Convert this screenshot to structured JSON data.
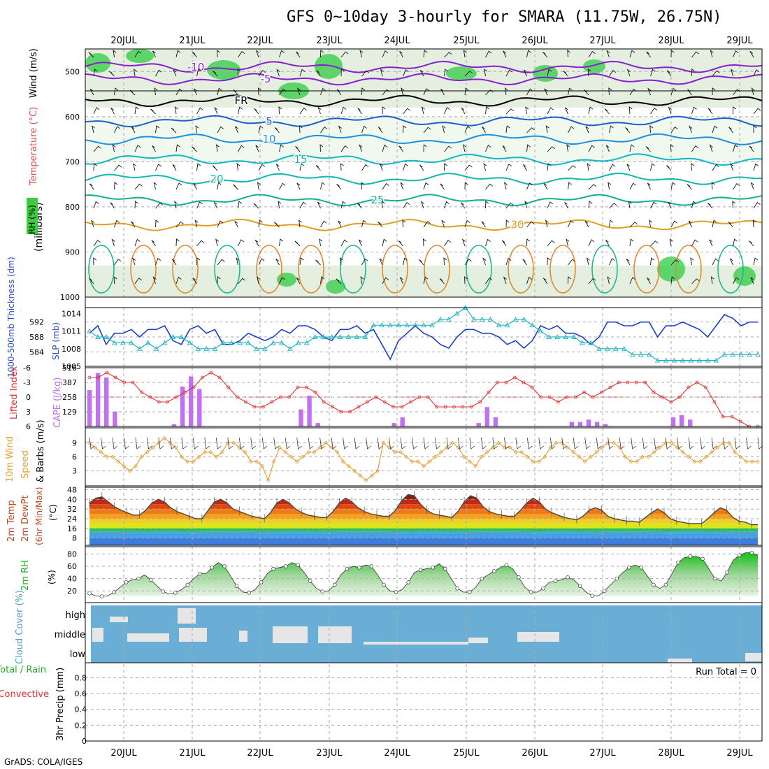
{
  "header": {
    "title": "GFS 0~10day 3-hourly for SMARA (11.75W, 26.75N)",
    "credit": "GrADS: COLA/IGES"
  },
  "dates": [
    "20JUL",
    "21JUL",
    "22JUL",
    "23JUL",
    "24JUL",
    "25JUL",
    "26JUL",
    "27JUL",
    "28JUL",
    "29JUL"
  ],
  "colors": {
    "rh_green": "#2ecc40",
    "temp_purple": "#8a1fd0",
    "temp_blue": "#1e5fd0",
    "temp_cyan": "#10b8c8",
    "temp_orange": "#e0a020",
    "thickness": "#1c3fc8",
    "slp": "#20b4c0",
    "lifted": "#e03030",
    "cape": "#c070f0",
    "wind10": "#e89a30",
    "rh2m": "#22bb22",
    "cloud": "#6aaed6",
    "cloud_bar": "#e6e6e6"
  },
  "chart_data": [
    {
      "type": "heatmap",
      "panel": "upper-air",
      "y_axis_title": "(millibars)",
      "legend_labels": [
        "RH (%)",
        "Temperature (°C)",
        "Wind (m/s)"
      ],
      "yticks": [
        500,
        600,
        700,
        800,
        900,
        1000
      ],
      "ylim": [
        450,
        1000
      ],
      "isotherms": [
        {
          "label": "-10",
          "pressure": 490,
          "color": "#8a1fd0"
        },
        {
          "label": "-5",
          "pressure": 517,
          "color": "#8a1fd0"
        },
        {
          "label": "FR",
          "pressure": 565,
          "color": "#000000"
        },
        {
          "label": "5",
          "pressure": 610,
          "color": "#1e5fd0"
        },
        {
          "label": "10",
          "pressure": 650,
          "color": "#1e8fe0"
        },
        {
          "label": "15",
          "pressure": 695,
          "color": "#10b8c8"
        },
        {
          "label": "20",
          "pressure": 738,
          "color": "#10b8b0"
        },
        {
          "label": "25",
          "pressure": 785,
          "color": "#10b090"
        },
        {
          "label": "30",
          "pressure": 840,
          "color": "#e0a020"
        }
      ]
    },
    {
      "type": "line",
      "panel": "thickness-slp",
      "label_left": "1000-500mb Thickness (dm)",
      "label_right": "SLP (mb)",
      "left_ticks": [
        584,
        588,
        592
      ],
      "right_ticks": [
        1005,
        1008,
        1011,
        1014
      ],
      "series": [
        {
          "values": [
            589,
            591,
            586,
            589,
            589,
            590,
            588,
            590,
            590,
            591,
            587,
            586,
            590,
            591,
            589,
            590,
            586,
            586,
            587,
            589,
            588,
            587,
            588,
            590,
            589,
            591,
            591,
            590,
            588,
            587,
            590,
            590,
            591,
            589,
            590,
            586,
            582,
            587,
            589,
            591,
            589,
            588,
            586,
            585,
            588,
            590,
            590,
            589,
            589,
            588,
            586,
            587,
            585,
            587,
            591,
            590,
            591,
            589,
            589,
            588,
            586,
            588,
            592,
            592,
            591,
            591,
            592,
            592,
            588,
            591,
            591,
            592,
            591,
            590,
            588,
            591,
            594,
            593,
            591,
            592,
            592
          ]
        },
        {
          "values": [
            1011,
            1010,
            1010,
            1009,
            1009,
            1009,
            1008,
            1009,
            1008,
            1009,
            1010,
            1010,
            1009,
            1008,
            1008,
            1008,
            1009,
            1009,
            1009,
            1009,
            1008,
            1008,
            1009,
            1009,
            1008,
            1009,
            1009,
            1010,
            1010,
            1010,
            1010,
            1010,
            1010,
            1010,
            1012,
            1012,
            1012,
            1012,
            1012,
            1012,
            1012,
            1012,
            1013,
            1013,
            1014,
            1015,
            1013,
            1013,
            1013,
            1012,
            1012,
            1013,
            1013,
            1012,
            1011,
            1010,
            1010,
            1010,
            1010,
            1009,
            1009,
            1008,
            1008,
            1008,
            1008,
            1007,
            1007,
            1007,
            1006,
            1006,
            1006,
            1006,
            1006,
            1006,
            1006,
            1006,
            1007,
            1007,
            1007,
            1007,
            1007
          ]
        }
      ]
    },
    {
      "type": "bar",
      "panel": "lifted-cape",
      "label_left": "Lifted Index",
      "label_right": "CAPE (J/kg)",
      "li_ticks": [
        "-6",
        "-3",
        "0",
        "3",
        "6"
      ],
      "cape_ticks": [
        129,
        258,
        387,
        516
      ],
      "series": [
        {
          "name": "Lifted Index",
          "values": [
            -4,
            -4,
            -5,
            -4,
            -3,
            -3,
            -1,
            0,
            1,
            1,
            0,
            -1,
            -2,
            -4,
            -5,
            -4,
            -2,
            0,
            1,
            2,
            2,
            1,
            0,
            0,
            -2,
            -2,
            -1,
            1,
            2,
            3,
            3,
            2,
            1,
            0,
            1,
            2,
            2,
            1,
            0,
            0,
            2,
            2,
            2,
            2,
            2,
            1,
            -1,
            -3,
            -3,
            -4,
            -3,
            -2,
            0,
            0,
            1,
            0,
            0,
            -1,
            0,
            -1,
            -2,
            -3,
            -3,
            -3,
            -3,
            -1,
            0,
            1,
            0,
            -2,
            -3,
            -2,
            1,
            4,
            4,
            5,
            6,
            6
          ]
        },
        {
          "name": "CAPE",
          "values": [
            320,
            470,
            430,
            130,
            0,
            0,
            0,
            0,
            0,
            0,
            20,
            350,
            440,
            330,
            0,
            0,
            0,
            0,
            0,
            0,
            0,
            0,
            0,
            0,
            0,
            150,
            270,
            30,
            0,
            0,
            0,
            0,
            0,
            0,
            0,
            0,
            30,
            80,
            0,
            0,
            0,
            0,
            0,
            0,
            0,
            0,
            30,
            170,
            80,
            0,
            0,
            0,
            0,
            0,
            0,
            0,
            0,
            40,
            40,
            60,
            40,
            20,
            0,
            0,
            0,
            0,
            0,
            0,
            0,
            80,
            100,
            60,
            0,
            0,
            0,
            0,
            0,
            0,
            0,
            0
          ]
        }
      ]
    },
    {
      "type": "line",
      "panel": "wind10m",
      "label": "10m Wind Speed & Barbs (m/s)",
      "yticks": [
        3,
        6,
        9
      ],
      "values": [
        9,
        8,
        7,
        6,
        6,
        5,
        4,
        3,
        4,
        6,
        7,
        8,
        9,
        10,
        9,
        8,
        6,
        5,
        5,
        6,
        7,
        7,
        6,
        7,
        9,
        9,
        8,
        7,
        5,
        5,
        4,
        1,
        5,
        8,
        7,
        6,
        5,
        6,
        7,
        7,
        8,
        9,
        8,
        7,
        5,
        4,
        3,
        2,
        1,
        2,
        3,
        9,
        8,
        7,
        7,
        6,
        5,
        5,
        4,
        5,
        6,
        7,
        8,
        9,
        8,
        6,
        5,
        4,
        6,
        7,
        8,
        9,
        8,
        8,
        7,
        7,
        6,
        5,
        5,
        6,
        8,
        9,
        9,
        8,
        7,
        6,
        5,
        6,
        7,
        8,
        9,
        9,
        8,
        6,
        5,
        5,
        6,
        6,
        7,
        8,
        9,
        9,
        8,
        7,
        6,
        5,
        5,
        6,
        7,
        8,
        9,
        9,
        7,
        6,
        5,
        5,
        5
      ]
    },
    {
      "type": "area",
      "panel": "temp2m",
      "labels": [
        "2m Temp",
        "2m DewPt",
        "(6hr Min/Max)"
      ],
      "unit": "(°C)",
      "yticks": [
        8,
        16,
        24,
        32,
        40,
        48
      ],
      "temp": [
        37,
        41,
        42,
        38,
        34,
        31,
        29,
        27,
        27,
        31,
        37,
        40,
        38,
        33,
        30,
        28,
        26,
        24,
        24,
        31,
        38,
        40,
        37,
        32,
        30,
        28,
        26,
        25,
        24,
        29,
        37,
        40,
        37,
        32,
        29,
        27,
        26,
        25,
        25,
        30,
        37,
        41,
        38,
        33,
        30,
        28,
        27,
        26,
        26,
        31,
        39,
        44,
        43,
        36,
        31,
        28,
        27,
        26,
        25,
        30,
        38,
        43,
        41,
        34,
        30,
        28,
        27,
        26,
        26,
        31,
        37,
        41,
        38,
        32,
        29,
        27,
        25,
        24,
        23,
        26,
        31,
        33,
        31,
        26,
        24,
        23,
        22,
        22,
        21,
        25,
        29,
        32,
        29,
        24,
        22,
        21,
        20,
        20,
        20,
        24,
        29,
        33,
        31,
        25,
        22,
        21,
        19,
        19
      ]
    },
    {
      "type": "area",
      "panel": "rh2m",
      "label": "2m RH",
      "unit": "(%)",
      "yticks": [
        20,
        40,
        60,
        80
      ],
      "values": [
        16,
        12,
        11,
        12,
        18,
        26,
        34,
        38,
        40,
        46,
        38,
        28,
        19,
        15,
        17,
        22,
        30,
        40,
        48,
        48,
        58,
        66,
        60,
        44,
        28,
        18,
        17,
        22,
        34,
        48,
        56,
        58,
        60,
        66,
        62,
        50,
        36,
        24,
        19,
        20,
        30,
        46,
        56,
        60,
        58,
        62,
        60,
        46,
        30,
        20,
        18,
        22,
        34,
        50,
        54,
        56,
        58,
        64,
        56,
        40,
        24,
        18,
        18,
        26,
        40,
        46,
        52,
        58,
        62,
        56,
        42,
        26,
        18,
        18,
        24,
        34,
        36,
        38,
        42,
        38,
        28,
        18,
        12,
        12,
        20,
        30,
        40,
        50,
        58,
        62,
        58,
        44,
        30,
        24,
        30,
        48,
        66,
        74,
        76,
        76,
        72,
        56,
        40,
        36,
        50,
        70,
        78,
        82,
        82,
        78
      ]
    },
    {
      "type": "bar",
      "panel": "cloud",
      "label": "Cloud Cover (%)",
      "levels": [
        "high",
        "middle",
        "low"
      ]
    },
    {
      "type": "bar",
      "panel": "precip",
      "label_lines": [
        "Total / Rain",
        "Convective"
      ],
      "ylabel": "3hr Precip (mm)",
      "yticks": [
        0,
        0.2,
        0.4,
        0.6,
        0.8
      ],
      "annotation": "Run Total = 0",
      "values": [
        0,
        0,
        0,
        0,
        0,
        0,
        0,
        0,
        0,
        0
      ]
    }
  ]
}
